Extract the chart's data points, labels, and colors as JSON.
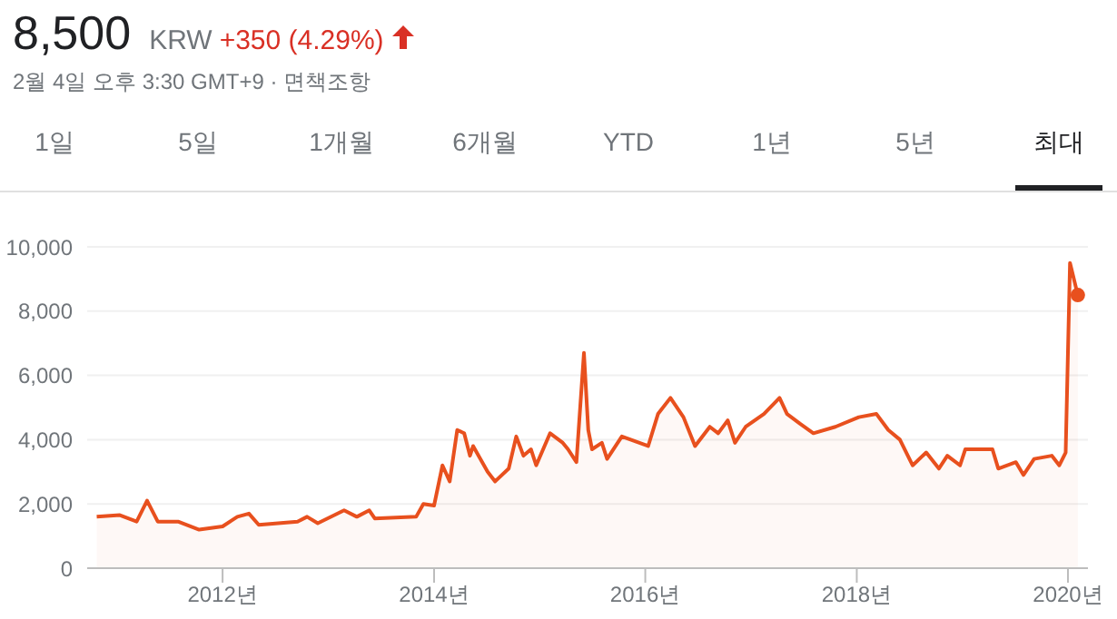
{
  "chart_data": {
    "type": "area",
    "title": "8,500",
    "subtitle": "2월 4일 오후 3:30 GMT+9 · 면책조항",
    "annotations": [
      "KRW",
      "+350 (4.29%)",
      "1일",
      "5일",
      "1개월",
      "6개월",
      "YTD",
      "1년",
      "5년",
      "최대"
    ],
    "x": [
      "2010-10-23",
      "2011-01-11",
      "2011-03-10",
      "2011-04-15",
      "2011-05-22",
      "2011-07-31",
      "2011-10-12",
      "2012-01-01",
      "2012-02-21",
      "2012-04-01",
      "2012-05-05",
      "2012-09-16",
      "2012-10-19",
      "2012-11-25",
      "2013-02-24",
      "2013-04-09",
      "2013-05-22",
      "2013-06-10",
      "2013-10-31",
      "2013-11-25",
      "2014-01-01",
      "2014-01-30",
      "2014-02-24",
      "2014-03-22",
      "2014-04-15",
      "2014-05-05",
      "2014-05-16",
      "2014-07-05",
      "2014-07-31",
      "2014-09-16",
      "2014-10-12",
      "2014-11-06",
      "2014-12-02",
      "2014-12-20",
      "2015-02-06",
      "2015-03-22",
      "2015-04-09",
      "2015-05-08",
      "2015-06-03",
      "2015-06-18",
      "2015-07-01",
      "2015-08-04",
      "2015-08-22",
      "2015-10-12",
      "2016-01-11",
      "2016-02-14",
      "2016-03-28",
      "2016-05-12",
      "2016-06-21",
      "2016-08-11",
      "2016-09-09",
      "2016-10-12",
      "2016-11-06",
      "2016-12-13",
      "2017-02-14",
      "2017-04-09",
      "2017-05-05",
      "2017-06-18",
      "2017-08-04",
      "2017-10-19",
      "2018-01-08",
      "2018-03-10",
      "2018-04-20",
      "2018-05-30",
      "2018-07-13",
      "2018-08-29",
      "2018-10-12",
      "2018-11-10",
      "2018-12-24",
      "2019-01-11",
      "2019-04-15",
      "2019-05-05",
      "2019-07-05",
      "2019-07-31",
      "2019-09-06",
      "2019-11-06",
      "2019-12-02",
      "2019-12-24",
      "2020-01-08",
      "2020-02-04"
    ],
    "series": [
      {
        "color": "#e8501e",
        "values": [
          1600,
          1650,
          1450,
          2100,
          1450,
          1450,
          1200,
          1300,
          1600,
          1700,
          1350,
          1450,
          1600,
          1400,
          1800,
          1600,
          1800,
          1550,
          1600,
          2000,
          1950,
          3200,
          2700,
          4300,
          4200,
          3500,
          3800,
          3000,
          2700,
          3100,
          4100,
          3500,
          3700,
          3200,
          4200,
          3900,
          3700,
          3300,
          6700,
          4300,
          3700,
          3900,
          3400,
          4100,
          3800,
          4800,
          5300,
          4700,
          3800,
          4400,
          4200,
          4600,
          3900,
          4400,
          4800,
          5300,
          4800,
          4500,
          4200,
          4400,
          4700,
          4800,
          4300,
          4000,
          3200,
          3600,
          3100,
          3500,
          3200,
          3700,
          3700,
          3100,
          3300,
          2900,
          3400,
          3500,
          3200,
          3600,
          9500,
          8500
        ]
      }
    ],
    "xlim": [
      "2010-09-20",
      "2020-03-10"
    ],
    "xticks": [
      {
        "value": "2012-01-01",
        "label": "2012년"
      },
      {
        "value": "2014-01-01",
        "label": "2014년"
      },
      {
        "value": "2016-01-01",
        "label": "2016년"
      },
      {
        "value": "2018-01-01",
        "label": "2018년"
      },
      {
        "value": "2020-01-01",
        "label": "2020년"
      }
    ],
    "ylim": [
      0,
      10000
    ],
    "yticks": [
      {
        "value": 0,
        "label": "0"
      },
      {
        "value": 2000,
        "label": "2,000"
      },
      {
        "value": 4000,
        "label": "4,000"
      },
      {
        "value": 6000,
        "label": "6,000"
      },
      {
        "value": 8000,
        "label": "8,000"
      },
      {
        "value": 10000,
        "label": "10,000"
      }
    ],
    "grid": "y"
  }
}
